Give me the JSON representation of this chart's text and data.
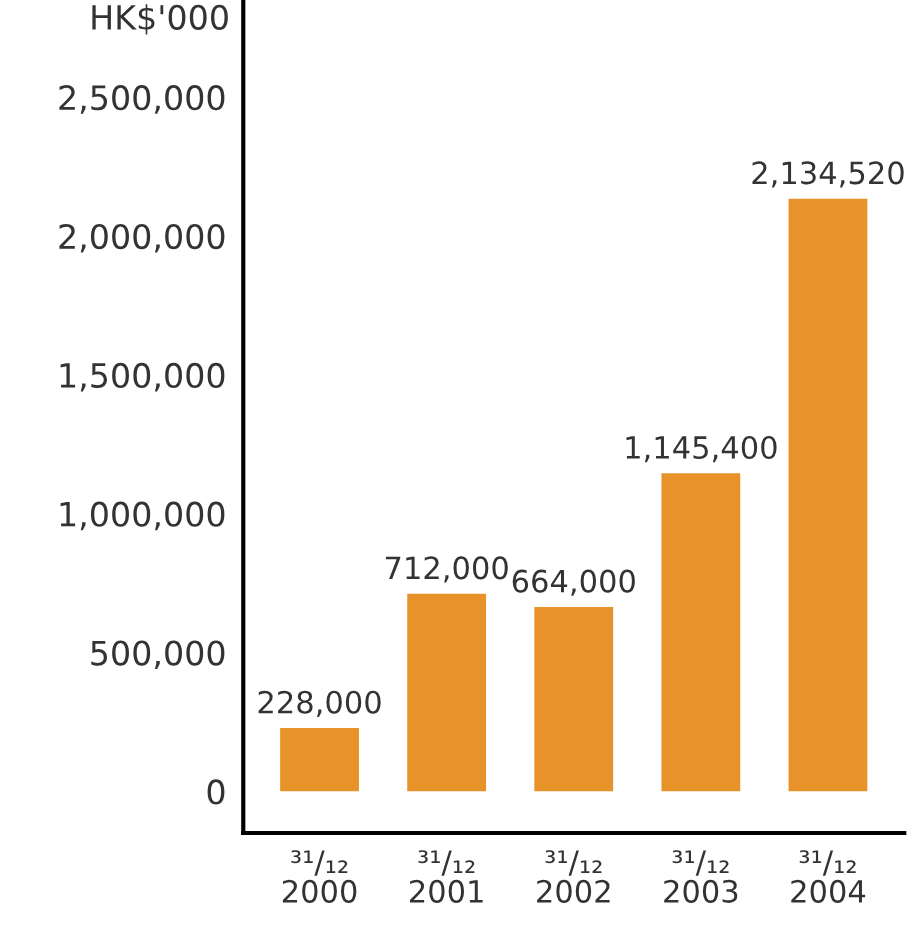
{
  "chart_data": {
    "type": "bar",
    "ylabel": "HK$'000",
    "categories": [
      "³¹/₁₂\n2000",
      "³¹/₁₂\n2001",
      "³¹/₁₂\n2002",
      "³¹/₁₂\n2003",
      "³¹/₁₂\n2004"
    ],
    "values": [
      228000,
      712000,
      664000,
      1145400,
      2134520
    ],
    "value_labels": [
      "228,000",
      "712,000",
      "664,000",
      "1,145,400",
      "2,134,520"
    ],
    "color": "#e8922a",
    "ylim": [
      -150000,
      2850000
    ],
    "yticks": [
      {
        "value": 0,
        "label": "0"
      },
      {
        "value": 500000,
        "label": "500,000"
      },
      {
        "value": 1000000,
        "label": "1,000,000"
      },
      {
        "value": 1500000,
        "label": "1,500,000"
      },
      {
        "value": 2000000,
        "label": "2,000,000"
      },
      {
        "value": 2500000,
        "label": "2,500,000"
      }
    ],
    "grid": false,
    "legend": false
  }
}
